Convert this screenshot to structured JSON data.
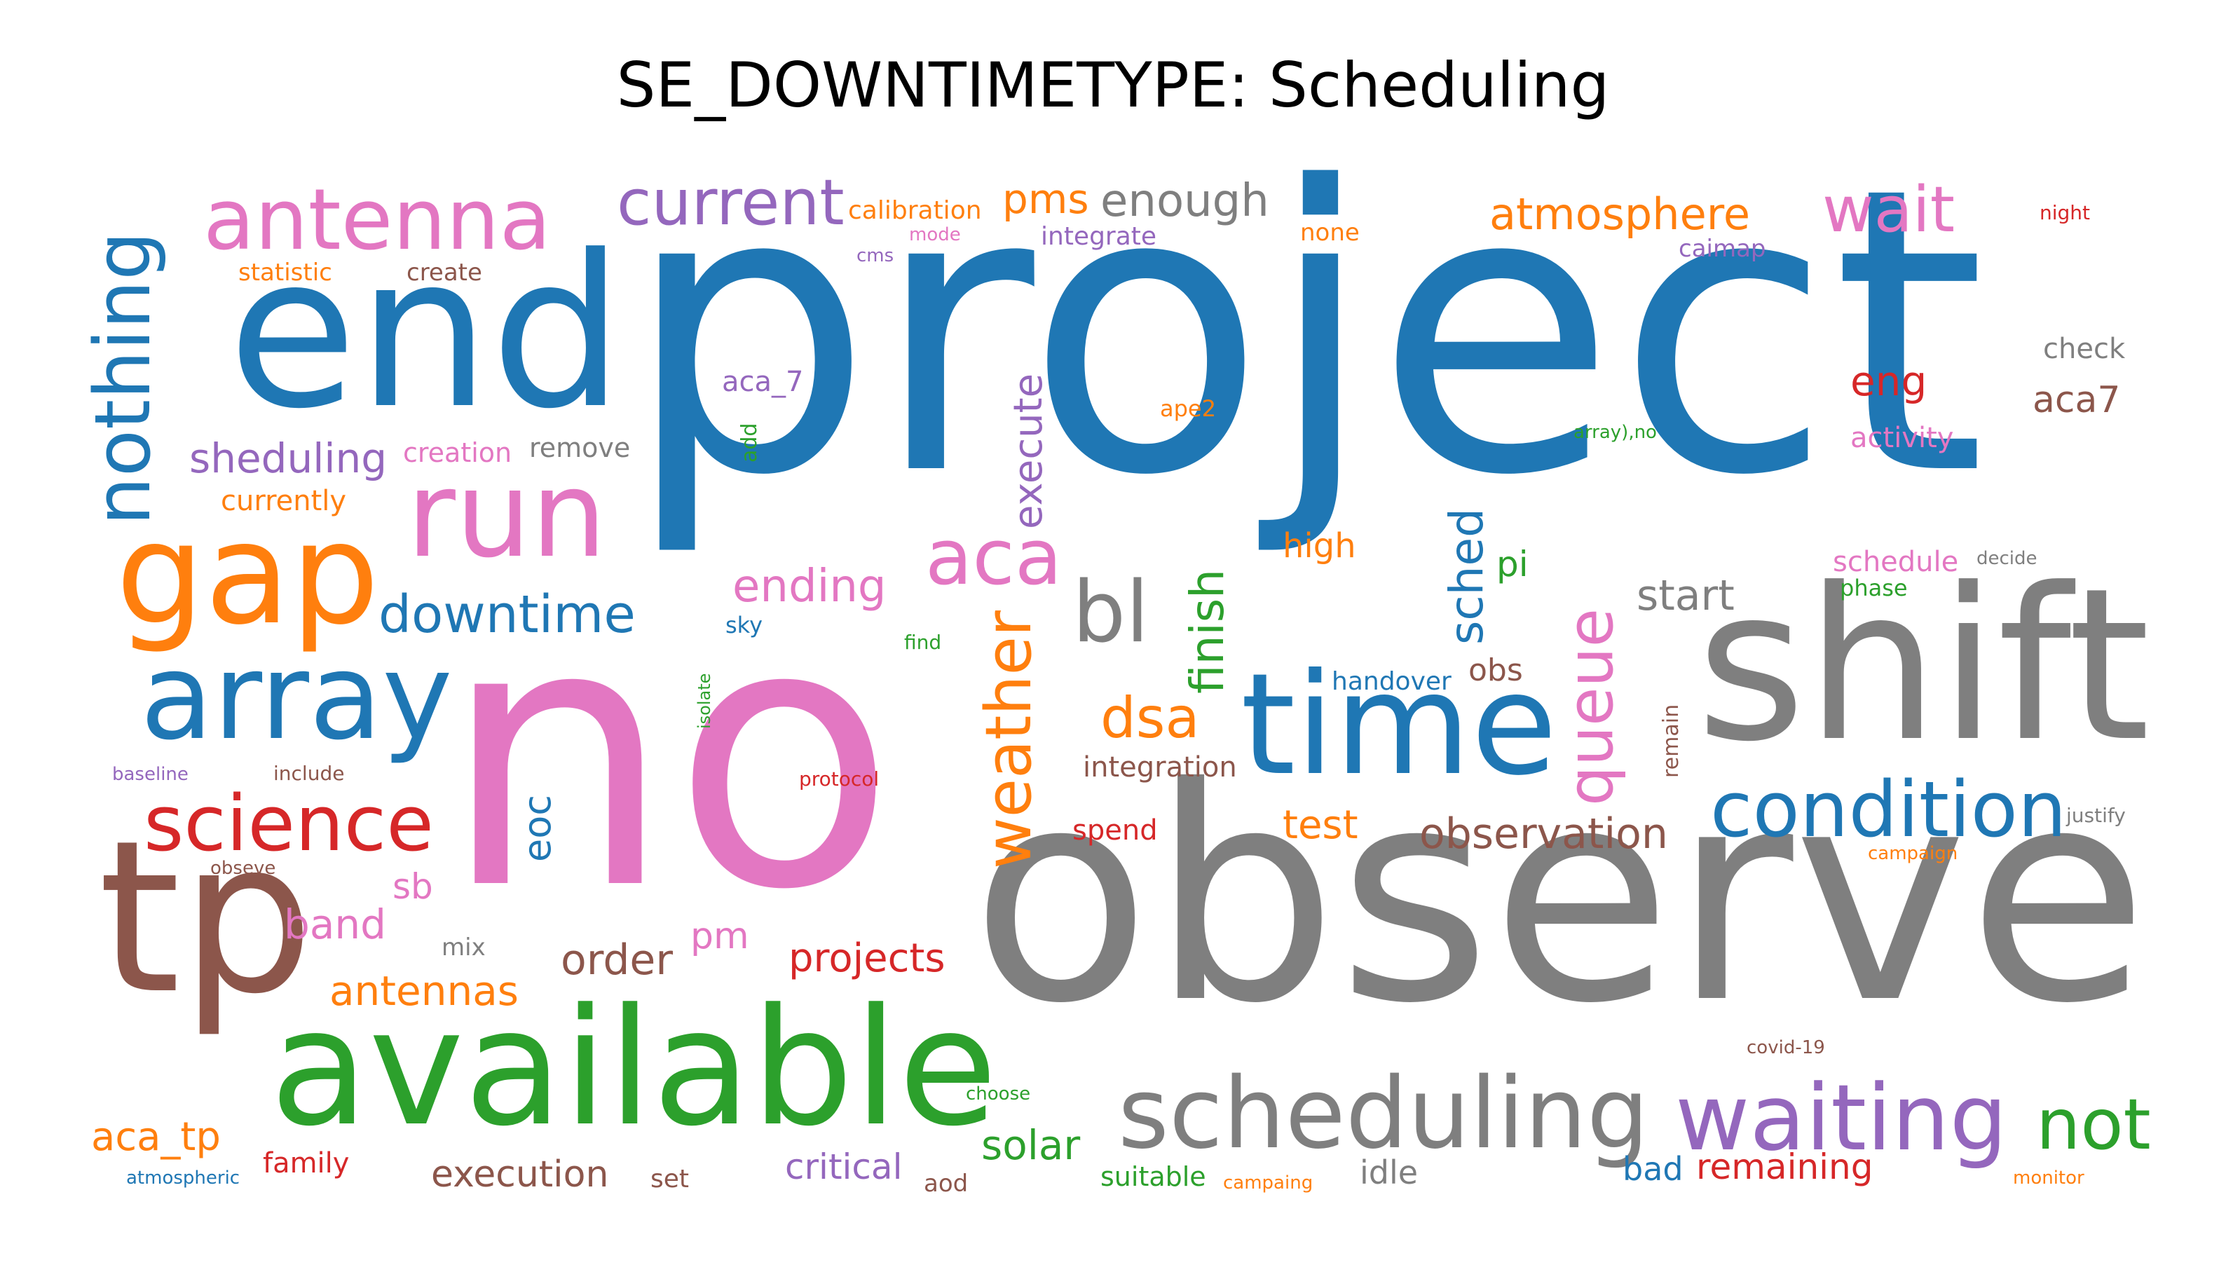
{
  "title": "SE_DOWNTIMETYPE: Scheduling",
  "words": [
    {
      "text": "project",
      "color": "#1f77b4",
      "size": 560
    },
    {
      "text": "no",
      "color": "#e377c2",
      "size": 520
    },
    {
      "text": "observe",
      "color": "#7f7f7f",
      "size": 420
    },
    {
      "text": "shift",
      "color": "#7f7f7f",
      "size": 300
    },
    {
      "text": "end",
      "color": "#1f77b4",
      "size": 300
    },
    {
      "text": "tp",
      "color": "#8c564b",
      "size": 300
    },
    {
      "text": "available",
      "color": "#2ca02c",
      "size": 230
    },
    {
      "text": "time",
      "color": "#1f77b4",
      "size": 200
    },
    {
      "text": "gap",
      "color": "#ff7f0e",
      "size": 200
    },
    {
      "text": "array",
      "color": "#1f77b4",
      "size": 170
    },
    {
      "text": "run",
      "color": "#e377c2",
      "size": 170
    },
    {
      "text": "antenna",
      "color": "#e377c2",
      "size": 120
    },
    {
      "text": "scheduling",
      "color": "#7f7f7f",
      "size": 140
    },
    {
      "text": "waiting",
      "color": "#9467bd",
      "size": 130
    },
    {
      "text": "condition",
      "color": "#1f77b4",
      "size": 110
    },
    {
      "text": "science",
      "color": "#d62728",
      "size": 110
    },
    {
      "text": "nothing",
      "color": "#1f77b4",
      "size": 110
    },
    {
      "text": "bl",
      "color": "#7f7f7f",
      "size": 120
    },
    {
      "text": "aca",
      "color": "#e377c2",
      "size": 110
    },
    {
      "text": "weather",
      "color": "#ff7f0e",
      "size": 90
    },
    {
      "text": "queue",
      "color": "#e377c2",
      "size": 90
    },
    {
      "text": "current",
      "color": "#9467bd",
      "size": 90
    },
    {
      "text": "not",
      "color": "#2ca02c",
      "size": 100
    },
    {
      "text": "wait",
      "color": "#e377c2",
      "size": 90
    },
    {
      "text": "downtime",
      "color": "#1f77b4",
      "size": 74
    },
    {
      "text": "atmosphere",
      "color": "#ff7f0e",
      "size": 62
    },
    {
      "text": "dsa",
      "color": "#ff7f0e",
      "size": 80
    },
    {
      "text": "finish",
      "color": "#2ca02c",
      "size": 66
    },
    {
      "text": "sched",
      "color": "#1f77b4",
      "size": 66
    },
    {
      "text": "enough",
      "color": "#7f7f7f",
      "size": 64
    },
    {
      "text": "ending",
      "color": "#e377c2",
      "size": 64
    },
    {
      "text": "execute",
      "color": "#9467bd",
      "size": 56
    },
    {
      "text": "observation",
      "color": "#8c564b",
      "size": 60
    },
    {
      "text": "sheduling",
      "color": "#9467bd",
      "size": 58
    },
    {
      "text": "eng",
      "color": "#d62728",
      "size": 58
    },
    {
      "text": "start",
      "color": "#7f7f7f",
      "size": 60
    },
    {
      "text": "order",
      "color": "#8c564b",
      "size": 60
    },
    {
      "text": "projects",
      "color": "#d62728",
      "size": 56
    },
    {
      "text": "antennas",
      "color": "#ff7f0e",
      "size": 58
    },
    {
      "text": "solar",
      "color": "#2ca02c",
      "size": 58
    },
    {
      "text": "pms",
      "color": "#ff7f0e",
      "size": 58
    },
    {
      "text": "band",
      "color": "#e377c2",
      "size": 58
    },
    {
      "text": "test",
      "color": "#ff7f0e",
      "size": 56
    },
    {
      "text": "aca_tp",
      "color": "#ff7f0e",
      "size": 56
    },
    {
      "text": "eoc",
      "color": "#1f77b4",
      "size": 54
    },
    {
      "text": "execution",
      "color": "#8c564b",
      "size": 52
    },
    {
      "text": "pm",
      "color": "#e377c2",
      "size": 52
    },
    {
      "text": "aca7",
      "color": "#8c564b",
      "size": 52
    },
    {
      "text": "critical",
      "color": "#9467bd",
      "size": 50
    },
    {
      "text": "remaining",
      "color": "#d62728",
      "size": 50
    },
    {
      "text": "sb",
      "color": "#e377c2",
      "size": 50
    },
    {
      "text": "bad",
      "color": "#1f77b4",
      "size": 46
    },
    {
      "text": "high",
      "color": "#ff7f0e",
      "size": 48
    },
    {
      "text": "pi",
      "color": "#2ca02c",
      "size": 50
    },
    {
      "text": "idle",
      "color": "#7f7f7f",
      "size": 46
    },
    {
      "text": "family",
      "color": "#d62728",
      "size": 40
    },
    {
      "text": "obs",
      "color": "#8c564b",
      "size": 44
    },
    {
      "text": "integration",
      "color": "#8c564b",
      "size": 40
    },
    {
      "text": "spend",
      "color": "#d62728",
      "size": 40
    },
    {
      "text": "currently",
      "color": "#ff7f0e",
      "size": 40
    },
    {
      "text": "aca_7",
      "color": "#9467bd",
      "size": 40
    },
    {
      "text": "remove",
      "color": "#7f7f7f",
      "size": 38
    },
    {
      "text": "creation",
      "color": "#e377c2",
      "size": 38
    },
    {
      "text": "schedule",
      "color": "#e377c2",
      "size": 40
    },
    {
      "text": "activity",
      "color": "#e377c2",
      "size": 40
    },
    {
      "text": "check",
      "color": "#7f7f7f",
      "size": 40
    },
    {
      "text": "calibration",
      "color": "#ff7f0e",
      "size": 36
    },
    {
      "text": "integrate",
      "color": "#9467bd",
      "size": 36
    },
    {
      "text": "suitable",
      "color": "#2ca02c",
      "size": 38
    },
    {
      "text": "handover",
      "color": "#1f77b4",
      "size": 36
    },
    {
      "text": "none",
      "color": "#ff7f0e",
      "size": 34
    },
    {
      "text": "caimap",
      "color": "#9467bd",
      "size": 34
    },
    {
      "text": "statistic",
      "color": "#ff7f0e",
      "size": 34
    },
    {
      "text": "create",
      "color": "#8c564b",
      "size": 34
    },
    {
      "text": "set",
      "color": "#8c564b",
      "size": 36
    },
    {
      "text": "aod",
      "color": "#8c564b",
      "size": 34
    },
    {
      "text": "mix",
      "color": "#7f7f7f",
      "size": 34
    },
    {
      "text": "ape2",
      "color": "#ff7f0e",
      "size": 32
    },
    {
      "text": "phase",
      "color": "#2ca02c",
      "size": 32
    },
    {
      "text": "sky",
      "color": "#1f77b4",
      "size": 32
    },
    {
      "text": "add",
      "color": "#2ca02c",
      "size": 30
    },
    {
      "text": "remain",
      "color": "#8c564b",
      "size": 30
    },
    {
      "text": "night",
      "color": "#d62728",
      "size": 28
    },
    {
      "text": "mode",
      "color": "#e377c2",
      "size": 26
    },
    {
      "text": "cms",
      "color": "#9467bd",
      "size": 26
    },
    {
      "text": "array),no",
      "color": "#2ca02c",
      "size": 26
    },
    {
      "text": "decide",
      "color": "#7f7f7f",
      "size": 26
    },
    {
      "text": "find",
      "color": "#2ca02c",
      "size": 28
    },
    {
      "text": "isolate",
      "color": "#2ca02c",
      "size": 24
    },
    {
      "text": "protocol",
      "color": "#d62728",
      "size": 28
    },
    {
      "text": "baseline",
      "color": "#9467bd",
      "size": 26
    },
    {
      "text": "include",
      "color": "#8c564b",
      "size": 28
    },
    {
      "text": "obseve",
      "color": "#8c564b",
      "size": 26
    },
    {
      "text": "justify",
      "color": "#7f7f7f",
      "size": 28
    },
    {
      "text": "campaign",
      "color": "#ff7f0e",
      "size": 26
    },
    {
      "text": "covid-19",
      "color": "#8c564b",
      "size": 26
    },
    {
      "text": "choose",
      "color": "#2ca02c",
      "size": 26
    },
    {
      "text": "campaing",
      "color": "#ff7f0e",
      "size": 26
    },
    {
      "text": "monitor",
      "color": "#ff7f0e",
      "size": 26
    },
    {
      "text": "atmospheric",
      "color": "#1f77b4",
      "size": 26
    }
  ]
}
